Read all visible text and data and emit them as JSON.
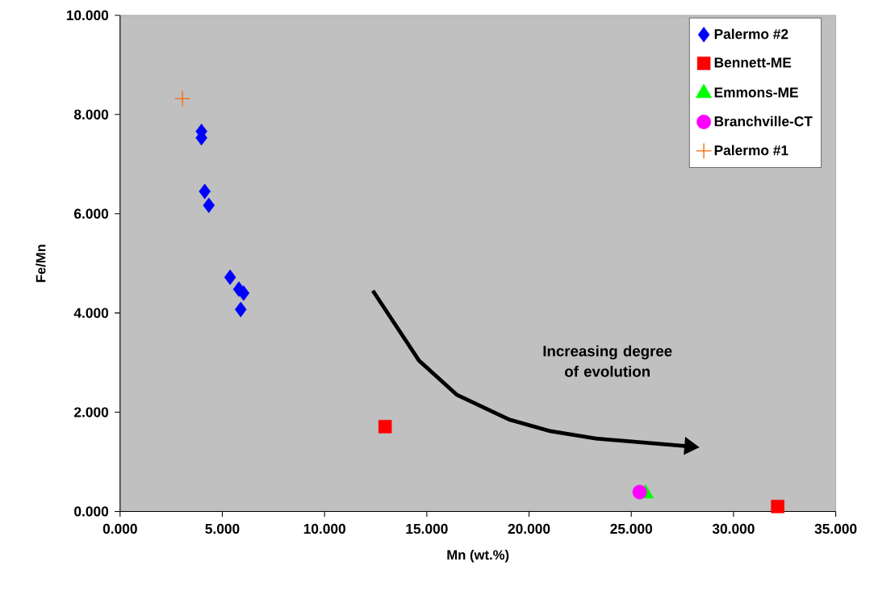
{
  "chart_data": {
    "type": "scatter",
    "xlabel": "Mn (wt.%)",
    "ylabel": "Fe/Mn",
    "xlim": [
      0,
      35
    ],
    "ylim": [
      0,
      10
    ],
    "xticks": [
      {
        "value": 0,
        "label": "0.000"
      },
      {
        "value": 5,
        "label": "5.000"
      },
      {
        "value": 10,
        "label": "10.000"
      },
      {
        "value": 15,
        "label": "15.000"
      },
      {
        "value": 20,
        "label": "20.000"
      },
      {
        "value": 25,
        "label": "25.000"
      },
      {
        "value": 30,
        "label": "30.000"
      },
      {
        "value": 35,
        "label": "35.000"
      }
    ],
    "yticks": [
      {
        "value": 0,
        "label": "0.000"
      },
      {
        "value": 2,
        "label": "2.000"
      },
      {
        "value": 4,
        "label": "4.000"
      },
      {
        "value": 6,
        "label": "6.000"
      },
      {
        "value": 8,
        "label": "8.000"
      },
      {
        "value": 10,
        "label": "10.000"
      }
    ],
    "legend": "top right",
    "grid": false,
    "annotations": [
      "Increasing degree of evolution"
    ],
    "series": [
      {
        "name": "Palermo #2",
        "color": "#0000ff",
        "marker": "diamond",
        "x": [
          3.98,
          3.98,
          4.14,
          4.34,
          5.38,
          5.81,
          6.04,
          5.9
        ],
        "values": [
          7.66,
          7.53,
          6.45,
          6.17,
          4.72,
          4.48,
          4.4,
          4.07
        ]
      },
      {
        "name": "Bennett-ME",
        "color": "#ff0000",
        "marker": "square",
        "x": [
          12.96,
          32.16
        ],
        "values": [
          1.71,
          0.1
        ]
      },
      {
        "name": "Emmons-ME",
        "color": "#00ff00",
        "marker": "triangle",
        "x": [
          25.7
        ],
        "values": [
          0.36
        ]
      },
      {
        "name": "Branchville-CT",
        "color": "#ff00ff",
        "marker": "circle",
        "x": [
          25.41
        ],
        "values": [
          0.39
        ]
      },
      {
        "name": "Palermo #1",
        "color": "#ff6600",
        "marker": "cross",
        "x": [
          3.05
        ],
        "values": [
          8.32
        ]
      }
    ]
  }
}
